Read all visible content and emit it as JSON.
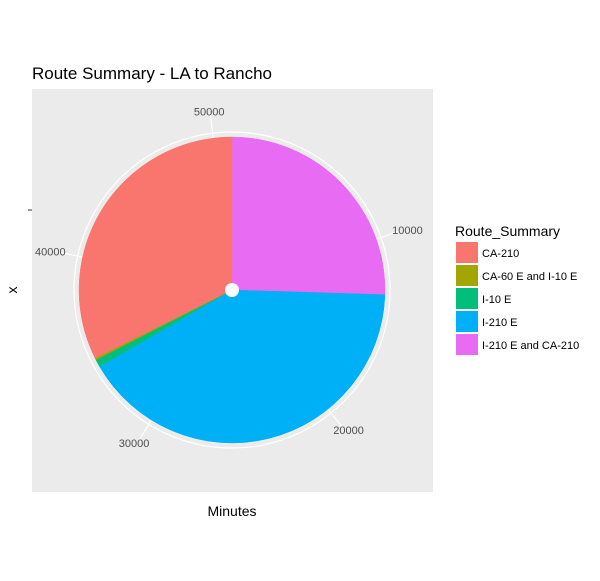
{
  "chart_data": {
    "type": "pie",
    "title": "Route Summary - LA to Rancho",
    "xlabel": "Minutes",
    "ylabel": "x",
    "legend_title": "Route_Summary",
    "legend_position": "right",
    "grid": true,
    "theta_ticks": [
      10000,
      20000,
      30000,
      40000,
      50000
    ],
    "total": 51000,
    "slices": [
      {
        "name": "I-210 E and CA-210",
        "value": 13000,
        "color": "#E76BF3"
      },
      {
        "name": "I-210 E",
        "value": 21000,
        "color": "#00B0F6"
      },
      {
        "name": "I-10 E",
        "value": 400,
        "color": "#00BF7D"
      },
      {
        "name": "CA-60 E and I-10 E",
        "value": 100,
        "color": "#A3A500"
      },
      {
        "name": "CA-210",
        "value": 16500,
        "color": "#F8766D"
      }
    ],
    "legend": [
      {
        "label": "CA-210",
        "color": "#F8766D"
      },
      {
        "label": "CA-60 E and I-10 E",
        "color": "#A3A500"
      },
      {
        "label": "I-10 E",
        "color": "#00BF7D"
      },
      {
        "label": "I-210 E",
        "color": "#00B0F6"
      },
      {
        "label": "I-210 E and CA-210",
        "color": "#E76BF3"
      }
    ]
  }
}
